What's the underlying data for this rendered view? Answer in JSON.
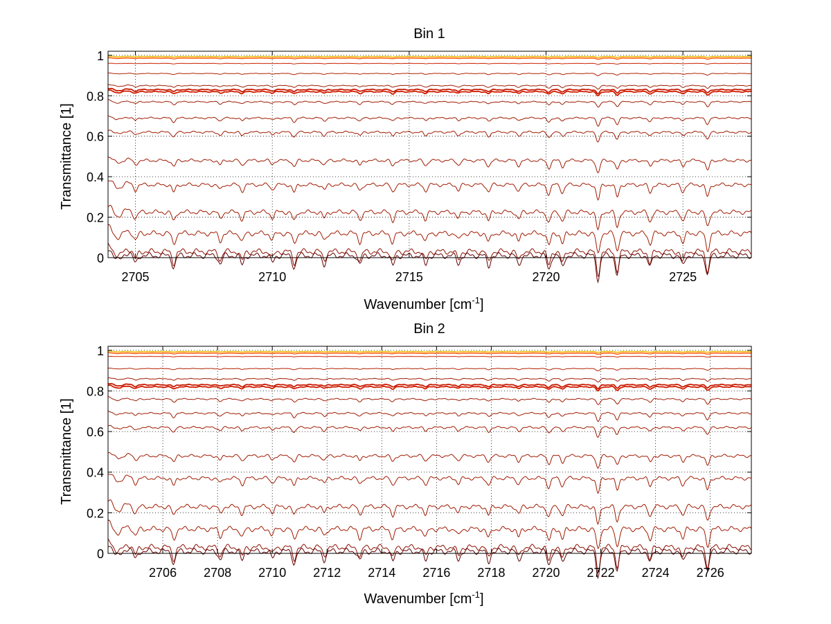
{
  "chart_data": [
    {
      "type": "line",
      "title": "Bin 1",
      "xlabel": "Wavenumber [cm",
      "xlabel_sup": "-1",
      "xlabel_end": "]",
      "ylabel": "Transmittance [1]",
      "xlim": [
        2704,
        2727.5
      ],
      "ylim": [
        0,
        1.02
      ],
      "xticks": [
        2705,
        2710,
        2715,
        2720,
        2725
      ],
      "xtick_labels": [
        "2705",
        "2710",
        "2715",
        "2720",
        "2725"
      ],
      "yticks": [
        0,
        0.2,
        0.4,
        0.6,
        0.8,
        1
      ],
      "ytick_labels": [
        "0",
        "0.2",
        "0.4",
        "0.6",
        "0.8",
        "1"
      ],
      "grid": true,
      "series_levels": [
        0.995,
        0.99,
        0.985,
        0.96,
        0.91,
        0.85,
        0.83,
        0.82,
        0.77,
        0.69,
        0.62,
        0.48,
        0.36,
        0.225,
        0.12,
        0.03,
        0.01
      ],
      "series_colors": [
        "#e8c800",
        "#ff8c00",
        "#ff4500",
        "#cc2200",
        "#b22000",
        "#a01a00",
        "#c81800",
        "#d01c00",
        "#a01a00",
        "#a01a00",
        "#a01a00",
        "#a01a00",
        "#a01a00",
        "#a01a00",
        "#a01a00",
        "#8b1000",
        "#600000"
      ],
      "absorption_lines": [
        2705.0,
        2706.4,
        2708.1,
        2708.9,
        2710.0,
        2710.8,
        2711.9,
        2713.2,
        2714.4,
        2715.6,
        2716.8,
        2717.9,
        2719.0,
        2720.1,
        2720.6,
        2721.9,
        2722.6,
        2723.8,
        2725.0,
        2725.9
      ],
      "absorption_strengths": [
        0.3,
        0.5,
        0.35,
        0.4,
        0.3,
        0.5,
        0.35,
        0.4,
        0.45,
        0.4,
        0.35,
        0.45,
        0.4,
        0.6,
        0.5,
        1.0,
        0.8,
        0.5,
        0.45,
        0.8
      ]
    },
    {
      "type": "line",
      "title": "Bin 2",
      "xlabel": "Wavenumber [cm",
      "xlabel_sup": "-1",
      "xlabel_end": "]",
      "ylabel": "Transmittance [1]",
      "xlim": [
        2704,
        2727.5
      ],
      "ylim": [
        0,
        1.02
      ],
      "xticks": [
        2706,
        2708,
        2710,
        2712,
        2714,
        2716,
        2718,
        2720,
        2722,
        2724,
        2726
      ],
      "xtick_labels": [
        "2706",
        "2708",
        "2710",
        "2712",
        "2714",
        "2716",
        "2718",
        "2720",
        "2722",
        "2724",
        "2726"
      ],
      "yticks": [
        0,
        0.2,
        0.4,
        0.6,
        0.8,
        1
      ],
      "ytick_labels": [
        "0",
        "0.2",
        "0.4",
        "0.6",
        "0.8",
        "1"
      ],
      "grid": true,
      "series_levels": [
        0.995,
        0.99,
        0.985,
        0.97,
        0.91,
        0.86,
        0.83,
        0.82,
        0.76,
        0.69,
        0.62,
        0.48,
        0.37,
        0.23,
        0.12,
        0.03,
        0.01
      ],
      "series_colors": [
        "#e8c800",
        "#ff8c00",
        "#ff4500",
        "#cc2200",
        "#b22000",
        "#a01a00",
        "#c81800",
        "#d01c00",
        "#a01a00",
        "#a01a00",
        "#a01a00",
        "#a01a00",
        "#a01a00",
        "#a01a00",
        "#a01a00",
        "#8b1000",
        "#600000"
      ],
      "absorption_lines": [
        2705.0,
        2706.4,
        2708.1,
        2708.9,
        2710.0,
        2710.8,
        2711.9,
        2713.2,
        2714.4,
        2715.6,
        2716.8,
        2717.9,
        2719.0,
        2720.1,
        2720.6,
        2721.9,
        2722.6,
        2723.8,
        2725.0,
        2725.9
      ],
      "absorption_strengths": [
        0.3,
        0.5,
        0.35,
        0.4,
        0.3,
        0.5,
        0.35,
        0.4,
        0.45,
        0.4,
        0.35,
        0.45,
        0.4,
        0.6,
        0.5,
        1.0,
        0.8,
        0.5,
        0.45,
        0.8
      ]
    }
  ]
}
